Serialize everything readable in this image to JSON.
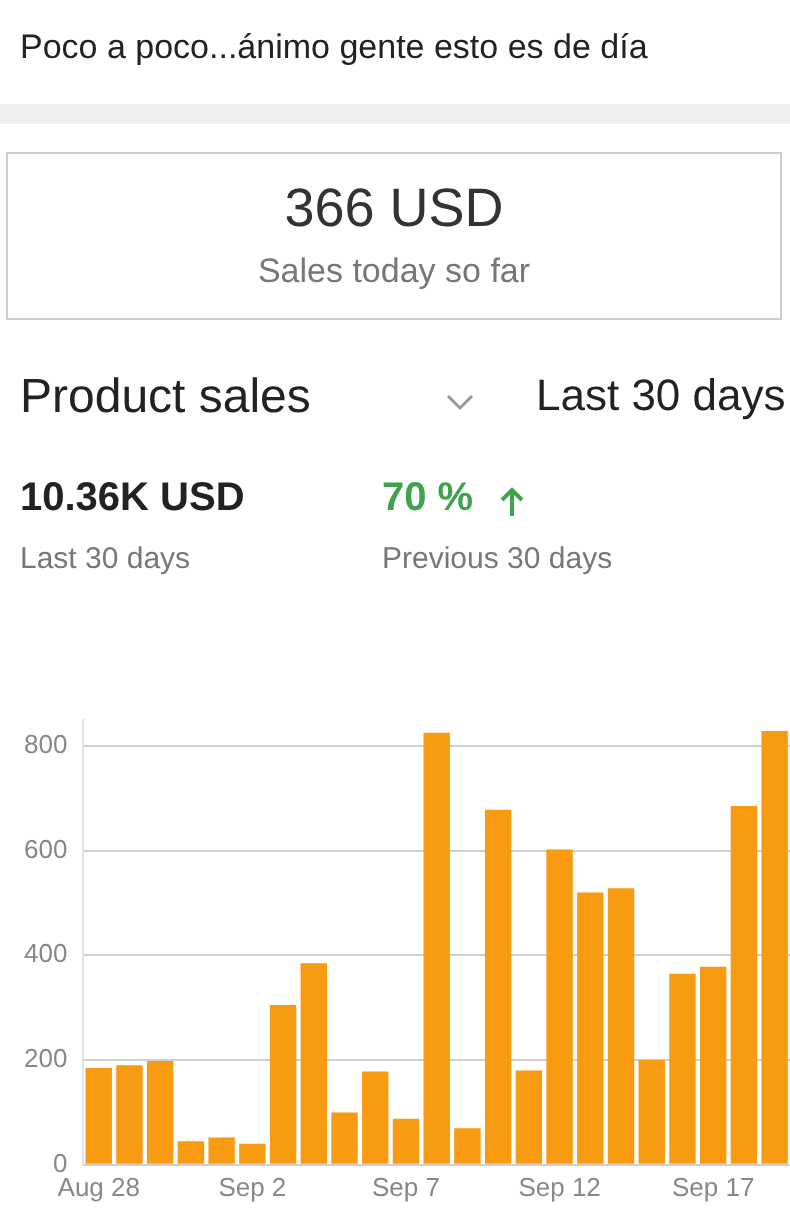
{
  "chart_data": {
    "type": "bar",
    "title": "Product sales",
    "annotations": [
      "Poco a poco...ánimo gente esto es de día",
      "366 USD",
      "Sales today so far",
      "Last 30 days",
      "10.36K USD",
      "Last 30 days",
      "70 %",
      "Previous 30 days"
    ],
    "categories": [
      "Aug 28",
      null,
      null,
      null,
      null,
      "Sep 2",
      null,
      null,
      null,
      null,
      "Sep 7",
      null,
      null,
      null,
      null,
      "Sep 12",
      null,
      null,
      null,
      null,
      "Sep 17",
      null,
      null
    ],
    "values": [
      185,
      190,
      198,
      45,
      52,
      40,
      305,
      385,
      100,
      178,
      88,
      825,
      70,
      678,
      180,
      602,
      520,
      528,
      200,
      365,
      378,
      685,
      828
    ],
    "color": "#f89a12",
    "ylim": [
      0,
      850
    ],
    "yticks": [
      0,
      200,
      400,
      600,
      800
    ],
    "grid": "y"
  }
}
